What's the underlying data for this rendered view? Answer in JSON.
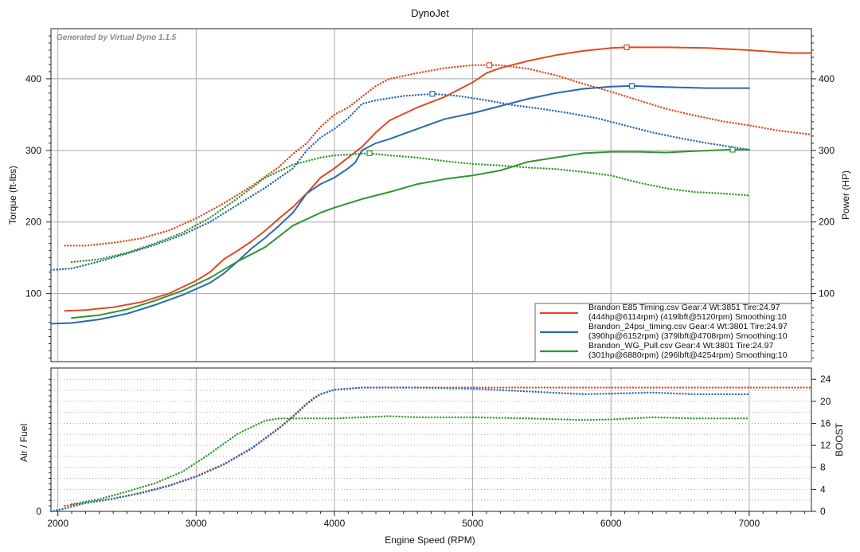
{
  "title": "DynoJet",
  "watermark": "Generated by Virtual Dyno 1.1.5",
  "x_axis": {
    "label": "Engine Speed (RPM)",
    "range": [
      1950,
      7450
    ],
    "ticks": [
      2000,
      3000,
      4000,
      5000,
      6000,
      7000
    ]
  },
  "colors": {
    "red": "#e04a22",
    "blue": "#2a68b0",
    "green": "#2f962f",
    "grid": "#a8a8a8"
  },
  "chart_data": [
    {
      "type": "line",
      "title": "DynoJet",
      "xlabel": "Engine Speed (RPM)",
      "ylabel": "Torque (ft-lbs)",
      "ylabel_right": "Power (HP)",
      "ylim": [
        5,
        470
      ],
      "ylim_right": [
        5,
        470
      ],
      "yticks": [
        100,
        200,
        300,
        400
      ],
      "grid": true,
      "legend_position": "bottom-right",
      "legend": [
        {
          "color": "red",
          "line1": "Brandon E85 Timing.csv Gear:4 Wt:3851 Tire:24.97",
          "line2": "(444hp@6114rpm) (419lbft@5120rpm) Smoothing:10"
        },
        {
          "color": "blue",
          "line1": "Brandon_24psi_timing.csv Gear:4 Wt:3801 Tire:24.97",
          "line2": "(390hp@6152rpm) (379lbft@4708rpm) Smoothing:10"
        },
        {
          "color": "green",
          "line1": "Brandon_WG_Pull.csv Gear:4 Wt:3801 Tire:24.97",
          "line2": "(301hp@6880rpm) (296lbft@4254rpm) Smoothing:10"
        }
      ],
      "series": [
        {
          "name": "Brandon E85 Timing.csv",
          "color": "red",
          "style": "solid",
          "x": [
            2050,
            2200,
            2400,
            2600,
            2800,
            3000,
            3100,
            3200,
            3300,
            3400,
            3500,
            3600,
            3700,
            3800,
            3900,
            4000,
            4100,
            4200,
            4300,
            4400,
            4600,
            4800,
            5000,
            5100,
            5200,
            5400,
            5600,
            5800,
            6000,
            6114,
            6400,
            6700,
            7000,
            7300,
            7450
          ],
          "y": [
            76,
            77,
            81,
            88,
            100,
            118,
            130,
            148,
            160,
            173,
            188,
            205,
            221,
            240,
            262,
            275,
            290,
            305,
            325,
            342,
            360,
            375,
            395,
            408,
            415,
            425,
            433,
            439,
            443,
            444,
            444,
            443,
            440,
            436,
            436
          ]
        },
        {
          "name": "Brandon E85 Timing.csv",
          "color": "red",
          "style": "dotted",
          "marker_x": 5120,
          "x": [
            2050,
            2200,
            2400,
            2600,
            2800,
            3000,
            3200,
            3400,
            3600,
            3700,
            3800,
            3900,
            4000,
            4100,
            4200,
            4300,
            4400,
            4600,
            4800,
            5000,
            5120,
            5200,
            5400,
            5600,
            5800,
            6000,
            6200,
            6400,
            6600,
            6800,
            7000,
            7200,
            7450
          ],
          "y": [
            167,
            167,
            171,
            177,
            188,
            205,
            226,
            250,
            277,
            295,
            310,
            333,
            350,
            360,
            375,
            390,
            400,
            408,
            415,
            419,
            419,
            419,
            414,
            405,
            393,
            382,
            370,
            358,
            349,
            341,
            335,
            328,
            322
          ]
        },
        {
          "name": "Brandon_24psi_timing.csv",
          "color": "blue",
          "style": "solid",
          "x": [
            1950,
            2100,
            2300,
            2500,
            2700,
            2900,
            3100,
            3200,
            3300,
            3400,
            3500,
            3600,
            3700,
            3800,
            3900,
            4000,
            4100,
            4150,
            4200,
            4300,
            4400,
            4600,
            4700,
            4800,
            5000,
            5200,
            5400,
            5600,
            5800,
            6000,
            6152,
            6300,
            6500,
            6700,
            7000
          ],
          "y": [
            58,
            59,
            64,
            72,
            84,
            98,
            115,
            128,
            145,
            163,
            178,
            195,
            213,
            240,
            253,
            262,
            275,
            283,
            300,
            310,
            316,
            330,
            337,
            344,
            352,
            362,
            372,
            380,
            386,
            389,
            390,
            389,
            388,
            387,
            387
          ]
        },
        {
          "name": "Brandon_24psi_timing.csv",
          "color": "blue",
          "style": "dotted",
          "marker_x": 4708,
          "x": [
            1950,
            2100,
            2300,
            2500,
            2700,
            2900,
            3100,
            3300,
            3500,
            3700,
            3800,
            3900,
            4000,
            4100,
            4200,
            4300,
            4500,
            4708,
            4900,
            5100,
            5300,
            5500,
            5700,
            5900,
            6100,
            6300,
            6500,
            6700,
            6900,
            7000
          ],
          "y": [
            133,
            135,
            145,
            156,
            168,
            182,
            200,
            224,
            248,
            275,
            300,
            318,
            330,
            345,
            365,
            370,
            376,
            379,
            376,
            370,
            363,
            358,
            352,
            345,
            335,
            325,
            317,
            310,
            304,
            301
          ]
        },
        {
          "name": "Brandon_WG_Pull.csv",
          "color": "green",
          "style": "solid",
          "x": [
            2100,
            2300,
            2500,
            2700,
            2900,
            3100,
            3300,
            3500,
            3700,
            3900,
            4000,
            4200,
            4400,
            4600,
            4800,
            5000,
            5200,
            5400,
            5600,
            5800,
            6000,
            6200,
            6400,
            6600,
            6880,
            7000
          ],
          "y": [
            66,
            70,
            78,
            90,
            104,
            122,
            145,
            165,
            195,
            213,
            220,
            232,
            242,
            253,
            260,
            265,
            272,
            284,
            290,
            296,
            298,
            298,
            297,
            299,
            301,
            301
          ]
        },
        {
          "name": "Brandon_WG_Pull.csv",
          "color": "green",
          "style": "dotted",
          "marker_x": 4254,
          "x": [
            2100,
            2300,
            2500,
            2700,
            2900,
            3100,
            3300,
            3500,
            3700,
            3900,
            4000,
            4254,
            4400,
            4600,
            4800,
            5000,
            5200,
            5400,
            5600,
            5800,
            6000,
            6200,
            6400,
            6600,
            6800,
            7000
          ],
          "y": [
            144,
            148,
            157,
            170,
            185,
            206,
            233,
            262,
            280,
            290,
            293,
            296,
            293,
            290,
            285,
            281,
            279,
            276,
            274,
            270,
            265,
            255,
            247,
            242,
            240,
            237
          ]
        }
      ]
    },
    {
      "type": "line",
      "xlabel": "Engine Speed (RPM)",
      "ylabel": "Air / Fuel",
      "ylabel_right": "BOOST",
      "ylim_right": [
        0,
        25
      ],
      "yticks_left": [
        0
      ],
      "yticks_right": [
        0,
        4,
        8,
        12,
        16,
        20,
        24
      ],
      "grid": true,
      "series": [
        {
          "name": "Brandon E85 Timing.csv",
          "color": "red",
          "style": "dotted",
          "x": [
            2050,
            2200,
            2400,
            2600,
            2800,
            3000,
            3200,
            3400,
            3600,
            3700,
            3800,
            3850,
            3900,
            4000,
            4200,
            4600,
            5000,
            5400,
            6000,
            6500,
            7000,
            7450
          ],
          "y": [
            1,
            1.5,
            2.3,
            3.4,
            4.7,
            6.4,
            8.6,
            11.5,
            15.2,
            17.3,
            19.6,
            20.6,
            21.3,
            22.1,
            22.5,
            22.5,
            22.5,
            22.5,
            22.5,
            22.5,
            22.5,
            22.5
          ]
        },
        {
          "name": "Brandon_24psi_timing.csv",
          "color": "blue",
          "style": "dotted",
          "x": [
            1950,
            2050,
            2200,
            2400,
            2600,
            2800,
            3000,
            3200,
            3400,
            3600,
            3700,
            3800,
            3850,
            3900,
            4000,
            4200,
            4600,
            5000,
            5400,
            5800,
            6000,
            6300,
            6600,
            7000
          ],
          "y": [
            0,
            0.5,
            1.5,
            2.3,
            3.3,
            4.6,
            6.3,
            8.5,
            11.4,
            15.1,
            17.2,
            19.5,
            20.5,
            21.3,
            22.1,
            22.5,
            22.5,
            22.3,
            21.8,
            21.3,
            21.4,
            21.6,
            21.3,
            21.3
          ]
        },
        {
          "name": "Brandon_WG_Pull.csv",
          "color": "green",
          "style": "dotted",
          "x": [
            2100,
            2300,
            2500,
            2700,
            2900,
            3100,
            3300,
            3500,
            3600,
            3800,
            4000,
            4200,
            4400,
            4600,
            5000,
            5400,
            5800,
            6000,
            6300,
            6600,
            7000
          ],
          "y": [
            1.3,
            2.2,
            3.6,
            5.1,
            7.2,
            10.5,
            14.1,
            16.5,
            16.9,
            16.9,
            16.9,
            17.1,
            17.3,
            17.1,
            17.1,
            16.9,
            16.6,
            16.7,
            17.1,
            16.9,
            16.9
          ]
        }
      ]
    }
  ]
}
